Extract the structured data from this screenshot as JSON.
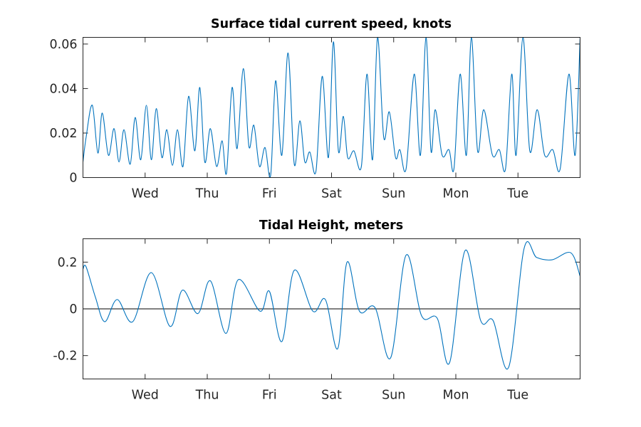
{
  "chart_data": [
    {
      "type": "line",
      "title": "Surface tidal current speed, knots",
      "x_unit": "days",
      "xlim": [
        0,
        8
      ],
      "ylim": [
        0,
        0.063
      ],
      "yticks": [
        0,
        0.02,
        0.04,
        0.06
      ],
      "ytick_labels": [
        "0",
        "0.02",
        "0.04",
        "0.06"
      ],
      "xticks": [
        1,
        2,
        3,
        4,
        5,
        6,
        7
      ],
      "xtick_labels": [
        "Wed",
        "Thu",
        "Fri",
        "Sat",
        "Sun",
        "Mon",
        "Tue"
      ],
      "color": "#0072BD",
      "series": [
        {
          "x": [
            0,
            0.05,
            0.15,
            0.24,
            0.31,
            0.41,
            0.5,
            0.58,
            0.66,
            0.76,
            0.84,
            0.93,
            1.02,
            1.1,
            1.18,
            1.27,
            1.35,
            1.44,
            1.52,
            1.61,
            1.7,
            1.8,
            1.88,
            1.96,
            2.05,
            2.15,
            2.24,
            2.31,
            2.4,
            2.48,
            2.58,
            2.67,
            2.75,
            2.84,
            2.93,
            3.02,
            3.1,
            3.2,
            3.3,
            3.4,
            3.49,
            3.57,
            3.65,
            3.75,
            3.85,
            3.95,
            4.03,
            4.11,
            4.19,
            4.26,
            4.36,
            4.48,
            4.57,
            4.66,
            4.74,
            4.84,
            4.93,
            5.03,
            5.1,
            5.2,
            5.33,
            5.43,
            5.52,
            5.6,
            5.67,
            5.78,
            5.89,
            5.97,
            6.07,
            6.17,
            6.25,
            6.35,
            6.45,
            6.59,
            6.7,
            6.8,
            6.9,
            6.97,
            7.08,
            7.19,
            7.31,
            7.43,
            7.56,
            7.68,
            7.82,
            7.92,
            8
          ],
          "y": [
            0.007,
            0.018,
            0.0325,
            0.011,
            0.029,
            0.01,
            0.022,
            0.007,
            0.0215,
            0.006,
            0.027,
            0.008,
            0.0325,
            0.008,
            0.031,
            0.009,
            0.0215,
            0.0055,
            0.0215,
            0.005,
            0.0365,
            0.012,
            0.0405,
            0.007,
            0.022,
            0.005,
            0.0165,
            0.002,
            0.0405,
            0.013,
            0.049,
            0.014,
            0.0235,
            0.005,
            0.0135,
            0.001,
            0.0435,
            0.01,
            0.056,
            0.006,
            0.0255,
            0.007,
            0.0115,
            0.003,
            0.0455,
            0.009,
            0.061,
            0.012,
            0.0275,
            0.009,
            0.012,
            0.005,
            0.0465,
            0.008,
            0.064,
            0.018,
            0.0295,
            0.009,
            0.0125,
            0.004,
            0.0465,
            0.01,
            0.064,
            0.012,
            0.0305,
            0.01,
            0.0125,
            0.004,
            0.0465,
            0.01,
            0.064,
            0.012,
            0.0305,
            0.01,
            0.0125,
            0.004,
            0.0465,
            0.01,
            0.064,
            0.012,
            0.0305,
            0.01,
            0.0125,
            0.004,
            0.0465,
            0.01,
            0.064
          ]
        }
      ]
    },
    {
      "type": "line",
      "title": "Tidal Height, meters",
      "x_unit": "days",
      "xlim": [
        0,
        8
      ],
      "ylim": [
        -0.3,
        0.3
      ],
      "yticks": [
        -0.2,
        0,
        0.2
      ],
      "ytick_labels": [
        "-0.2",
        "0",
        "0.2"
      ],
      "xticks": [
        1,
        2,
        3,
        4,
        5,
        6,
        7
      ],
      "xtick_labels": [
        "Wed",
        "Thu",
        "Fri",
        "Sat",
        "Sun",
        "Mon",
        "Tue"
      ],
      "reference_line_y": 0,
      "color": "#0072BD",
      "series": [
        {
          "x": [
            0,
            0.05,
            0.2,
            0.35,
            0.55,
            0.8,
            1.1,
            1.4,
            1.6,
            1.85,
            2.05,
            2.3,
            2.5,
            2.85,
            3,
            3.2,
            3.4,
            3.7,
            3.9,
            4.1,
            4.25,
            4.45,
            4.7,
            4.95,
            5.2,
            5.45,
            5.7,
            5.9,
            6.15,
            6.4,
            6.6,
            6.85,
            7.1,
            7.3,
            7.55,
            7.85,
            8
          ],
          "y": [
            0.17,
            0.18,
            0.05,
            -0.055,
            0.04,
            -0.055,
            0.155,
            -0.075,
            0.08,
            -0.02,
            0.12,
            -0.105,
            0.125,
            -0.01,
            0.075,
            -0.14,
            0.165,
            -0.01,
            0.04,
            -0.17,
            0.2,
            -0.01,
            0.005,
            -0.21,
            0.23,
            -0.03,
            -0.04,
            -0.23,
            0.25,
            -0.05,
            -0.05,
            -0.25,
            0.26,
            0.22,
            0.21,
            0.24,
            0.14
          ]
        }
      ]
    }
  ]
}
